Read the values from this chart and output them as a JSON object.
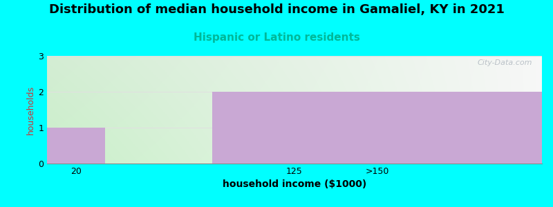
{
  "title": "Distribution of median household income in Gamaliel, KY in 2021",
  "subtitle": "Hispanic or Latino residents",
  "xlabel": "household income ($1000)",
  "ylabel": "households",
  "background_color": "#00FFFF",
  "plot_bg_left": "#d4edd4",
  "plot_bg_right": "#f5f5f2",
  "bar_color": "#c9a8d4",
  "watermark": "City-Data.com",
  "ylim": [
    0,
    3
  ],
  "yticks": [
    0,
    1,
    2,
    3
  ],
  "xtick_labels": [
    "20",
    "125",
    ">150"
  ],
  "title_fontsize": 13,
  "subtitle_fontsize": 11,
  "subtitle_color": "#00b899",
  "xlabel_fontsize": 10,
  "ylabel_fontsize": 9,
  "ylabel_color": "#cc3333",
  "watermark_color": "#b0b8c0",
  "tick_label_fontsize": 9,
  "grid_color": "#e0e0e0"
}
